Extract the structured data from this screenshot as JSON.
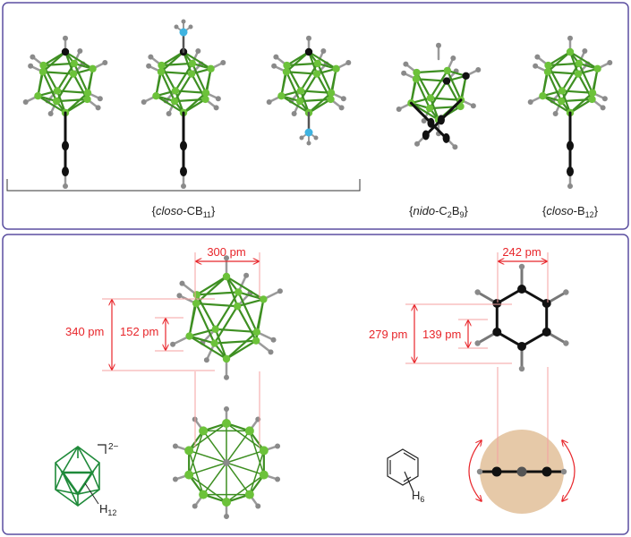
{
  "top_panel": {
    "labels": [
      {
        "pre": "{",
        "italic": "closo",
        "mid": "-CB",
        "sub": "11",
        "post": "}"
      },
      {
        "pre": "{",
        "italic": "nido",
        "mid": "-C",
        "sub": "2",
        "mid2": "B",
        "sub2": "9",
        "post": "}"
      },
      {
        "pre": "{",
        "italic": "closo",
        "mid": "-B",
        "sub": "12",
        "post": "}"
      }
    ]
  },
  "bottom_panel": {
    "borane": {
      "width": "300 pm",
      "height_outer": "340 pm",
      "height_inner": "152 pm",
      "charge": "2−",
      "formula_H": "H",
      "formula_sub": "12"
    },
    "benzene": {
      "width": "242 pm",
      "height_outer": "279 pm",
      "height_inner": "139 pm",
      "formula_H": "H",
      "formula_sub": "6"
    }
  },
  "colors": {
    "border": "#5b4fa0",
    "cluster_green": "#6cc23a",
    "bond_green": "#3e8f22",
    "dimension_red": "#e8262b",
    "hydrogen_grey": "#8a8a8a",
    "carbon_black": "#111111",
    "nitrogen_blue": "#3fb3e0",
    "disk_tan": "#e6c9a8",
    "schematic_green": "#1f8a3a"
  }
}
